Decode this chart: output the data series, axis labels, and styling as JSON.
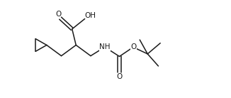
{
  "background": "#ffffff",
  "line_color": "#1a1a1a",
  "line_width": 1.1,
  "font_size": 7.0,
  "xlim": [
    0,
    10
  ],
  "ylim": [
    0,
    5
  ],
  "figsize": [
    3.26,
    1.38
  ],
  "dpi": 100
}
